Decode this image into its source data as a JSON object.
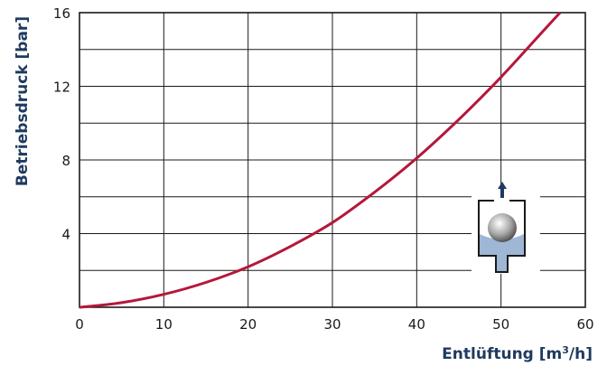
{
  "chart_data": {
    "type": "line",
    "xlabel": "Entlüftung [m³/h]",
    "ylabel": "Betriebsdruck [bar]",
    "xlim": [
      0,
      60
    ],
    "ylim": [
      0,
      16
    ],
    "x_ticks": [
      0,
      10,
      20,
      30,
      40,
      50,
      60
    ],
    "y_ticks": [
      4,
      8,
      12,
      16
    ],
    "x_tick_labels": [
      "0",
      "10",
      "20",
      "30",
      "40",
      "50",
      "60"
    ],
    "y_tick_labels": [
      "4",
      "8",
      "12",
      "16"
    ],
    "grid": true,
    "series": [
      {
        "color": "#b5173a",
        "x": [
          0,
          5,
          10,
          15,
          20,
          25,
          30,
          35,
          40,
          45,
          50,
          55,
          57
        ],
        "y": [
          0,
          0.25,
          0.7,
          1.35,
          2.2,
          3.3,
          4.6,
          6.25,
          8.1,
          10.2,
          12.5,
          15.0,
          16.0
        ]
      }
    ]
  },
  "colors": {
    "curve": "#b5173a",
    "axis_title": "#1f3a5f",
    "valve_liquid": "#9db7d4",
    "valve_arrow": "#1f3a5f"
  },
  "icon": {
    "name": "vent-valve-icon"
  }
}
